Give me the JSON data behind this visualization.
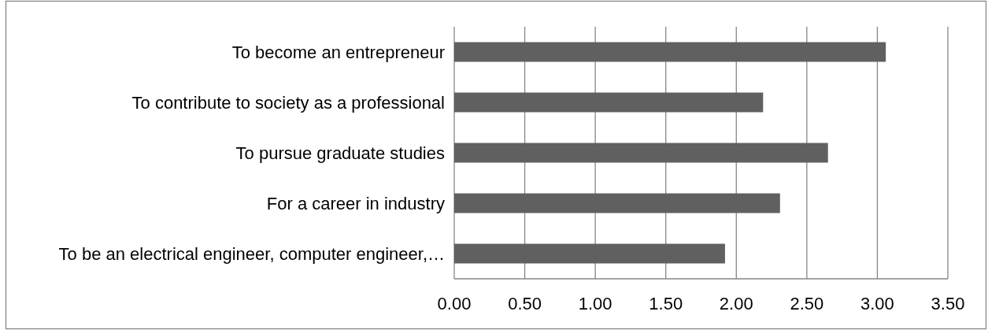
{
  "chart_data": {
    "type": "bar",
    "orientation": "horizontal",
    "categories": [
      "To become an entrepreneur",
      "To contribute to society as a professional",
      "To pursue graduate studies",
      "For a career in industry",
      "To be an electrical engineer, computer engineer,…"
    ],
    "values": [
      3.06,
      2.19,
      2.65,
      2.31,
      1.92
    ],
    "color": "#606060",
    "xlim": [
      0,
      3.5
    ],
    "xticks": [
      {
        "value": 0,
        "label": "0.00"
      },
      {
        "value": 0.5,
        "label": "0.50"
      },
      {
        "value": 1,
        "label": "1.00"
      },
      {
        "value": 1.5,
        "label": "1.50"
      },
      {
        "value": 2,
        "label": "2.00"
      },
      {
        "value": 2.5,
        "label": "2.50"
      },
      {
        "value": 3,
        "label": "3.00"
      },
      {
        "value": 3.5,
        "label": "3.50"
      }
    ],
    "grid": "x"
  }
}
